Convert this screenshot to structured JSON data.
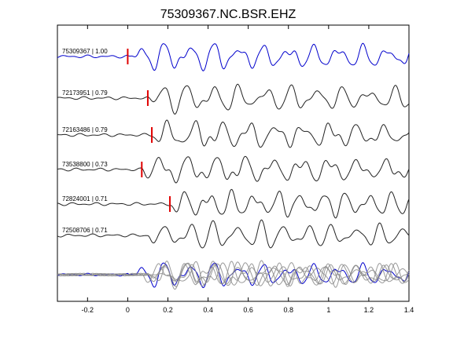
{
  "chart_data": {
    "type": "line",
    "title": "75309367.NC.BSR.EHZ",
    "xlabel": "",
    "ylabel": "",
    "xlim": [
      -0.35,
      1.4
    ],
    "x_ticks": [
      -0.2,
      0,
      0.2,
      0.4,
      0.6,
      0.8,
      1,
      1.2,
      1.4
    ],
    "x_tick_labels": [
      "-0.2",
      "0",
      "0.2",
      "0.4",
      "0.6",
      "0.8",
      "1",
      "1.2",
      "1.4"
    ],
    "grid": false,
    "colors": {
      "reference": "#0000cc",
      "trace": "#222222",
      "pick": "#e00000",
      "overlay_gray": "#888888"
    },
    "traces": [
      {
        "label": "75309367 | 1.00",
        "pick_time": 0.0,
        "reference": true,
        "seed": 1
      },
      {
        "label": "72173951 | 0.79",
        "pick_time": 0.1,
        "reference": false,
        "seed": 2
      },
      {
        "label": "72163486 | 0.79",
        "pick_time": 0.12,
        "reference": false,
        "seed": 3
      },
      {
        "label": "73538800 | 0.73",
        "pick_time": 0.07,
        "reference": false,
        "seed": 4
      },
      {
        "label": "72824001 | 0.71",
        "pick_time": 0.21,
        "reference": false,
        "seed": 5
      },
      {
        "label": "72508706 | 0.71",
        "pick_time": null,
        "reference": false,
        "seed": 6
      }
    ]
  }
}
